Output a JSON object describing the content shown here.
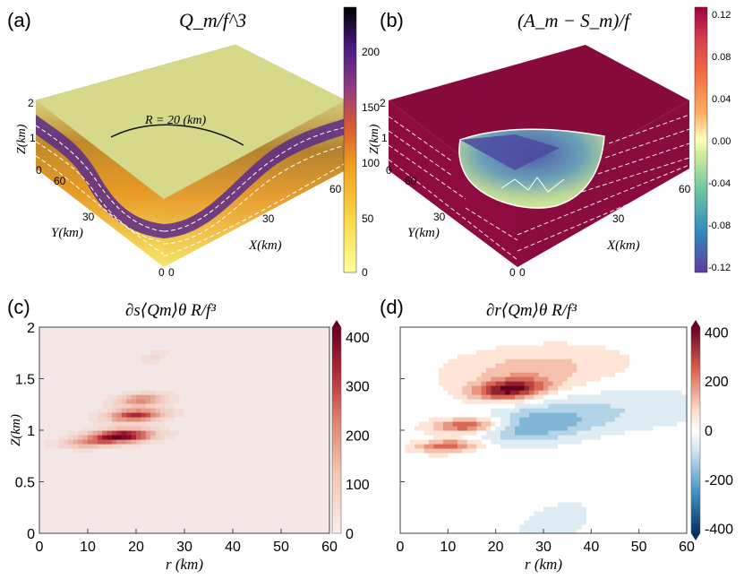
{
  "panels": {
    "a": {
      "letter": "(a)",
      "title": "Q_m/f^3",
      "radius_label": "R = 20 (km)",
      "z_axis_label": "Z(km)",
      "y_axis_label": "Y(km)",
      "x_axis_label": "X(km)",
      "z_ticks": [
        "2",
        "1",
        "0"
      ],
      "y_ticks": [
        "60",
        "30",
        "0"
      ],
      "x_ticks": [
        "0",
        "30",
        "60"
      ],
      "colorbar_ticks": [
        "200",
        "150",
        "100",
        "50",
        "0"
      ],
      "colorbar_range": [
        0,
        240
      ]
    },
    "b": {
      "letter": "(b)",
      "title": "(A_m − S_m)/f",
      "z_axis_label": "Z(km)",
      "y_axis_label": "Y(km)",
      "x_axis_label": "X(km)",
      "z_ticks": [
        "2",
        "1",
        "0"
      ],
      "y_ticks": [
        "60",
        "30",
        "0"
      ],
      "x_ticks": [
        "0",
        "30",
        "60"
      ],
      "colorbar_ticks": [
        "0.12",
        "0.08",
        "0.04",
        "0.00",
        "-0.04",
        "-0.08",
        "-0.12"
      ],
      "colorbar_range": [
        -0.12,
        0.12
      ]
    }
  },
  "chart_data": [
    {
      "type": "heatmap",
      "panel": "c",
      "letter": "(c)",
      "title": "∂s⟨Qm⟩θ R/f³",
      "xlabel": "r (km)",
      "ylabel": "Z(km)",
      "xlim": [
        0,
        60
      ],
      "ylim": [
        0,
        2
      ],
      "xticks": [
        0,
        10,
        20,
        30,
        40,
        50,
        60
      ],
      "yticks": [
        0,
        0.5,
        1,
        1.5,
        2
      ],
      "ytick_labels": [
        "0",
        "0.5",
        "1",
        "1.5",
        "2"
      ],
      "colorbar_ticks": [
        0,
        100,
        200,
        300,
        400
      ],
      "colorbar_labels": [
        "0",
        "100",
        "200",
        "300",
        "400"
      ],
      "clim": [
        0,
        420
      ],
      "features": [
        {
          "r": 17,
          "z": 0.95,
          "peak": 420,
          "sr": 4.5,
          "sz": 0.045
        },
        {
          "r": 20,
          "z": 1.15,
          "peak": 320,
          "sr": 4.0,
          "sz": 0.045
        },
        {
          "r": 21,
          "z": 1.3,
          "peak": 220,
          "sr": 3.5,
          "sz": 0.04
        },
        {
          "r": 10,
          "z": 0.88,
          "peak": 160,
          "sr": 4.0,
          "sz": 0.035
        },
        {
          "r": 24,
          "z": 1.72,
          "peak": 60,
          "sr": 1.5,
          "sz": 0.04
        }
      ]
    },
    {
      "type": "heatmap",
      "panel": "d",
      "letter": "(d)",
      "title": "∂r⟨Qm⟩θ R/f³",
      "xlabel": "r (km)",
      "ylabel": "",
      "xlim": [
        0,
        60
      ],
      "ylim": [
        0,
        2
      ],
      "xticks": [
        0,
        10,
        20,
        30,
        40,
        50,
        60
      ],
      "yticks": [
        0,
        0.5,
        1,
        1.5,
        2
      ],
      "colorbar_ticks": [
        400,
        200,
        0,
        -200,
        -400
      ],
      "colorbar_labels": [
        "400",
        "200",
        "0",
        "-200",
        "-400"
      ],
      "clim": [
        -420,
        420
      ],
      "features": [
        {
          "r": 23,
          "z": 1.4,
          "peak": 400,
          "sr": 5.0,
          "sz": 0.07
        },
        {
          "r": 14,
          "z": 1.05,
          "peak": 300,
          "sr": 5.0,
          "sz": 0.05
        },
        {
          "r": 10,
          "z": 0.85,
          "peak": 260,
          "sr": 4.5,
          "sz": 0.045
        },
        {
          "r": 28,
          "z": 1.6,
          "peak": 120,
          "sr": 12,
          "sz": 0.15
        },
        {
          "r": 28,
          "z": 1.05,
          "peak": -180,
          "sr": 8,
          "sz": 0.12
        },
        {
          "r": 45,
          "z": 1.2,
          "peak": -80,
          "sr": 14,
          "sz": 0.15
        },
        {
          "r": 32,
          "z": 0.1,
          "peak": -70,
          "sr": 5,
          "sz": 0.15
        }
      ]
    }
  ]
}
